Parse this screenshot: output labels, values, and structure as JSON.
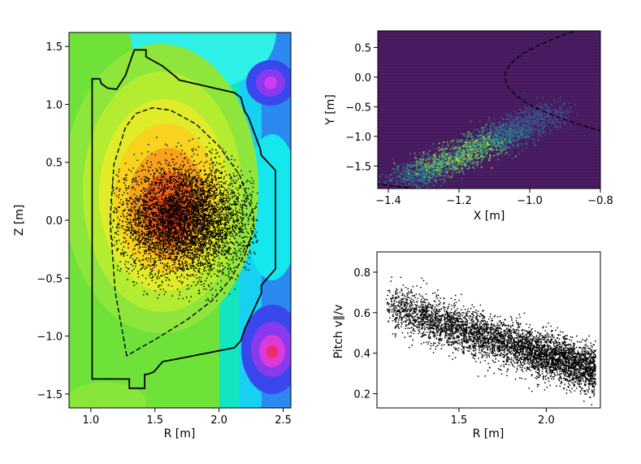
{
  "chart_data": [
    {
      "id": "poloidal",
      "type": "scatter",
      "title": "",
      "xlabel": "R [m]",
      "ylabel": "Z [m]",
      "xlim": [
        0.83,
        2.56
      ],
      "ylim": [
        -1.62,
        1.62
      ],
      "xticks": [
        1.0,
        1.5,
        2.0,
        2.5
      ],
      "xtick_labels": [
        "1.0",
        "1.5",
        "2.0",
        "2.5"
      ],
      "yticks": [
        -1.5,
        -1.0,
        -0.5,
        0.0,
        0.5,
        1.0,
        1.5
      ],
      "ytick_labels": [
        "−1.5",
        "−1.0",
        "−0.5",
        "0.0",
        "0.5",
        "1.0",
        "1.5"
      ],
      "background": "filled contour map of poloidal flux (green/yellow/red core, cyan/blue/magenta coils)",
      "wall": [
        [
          1.04,
          1.22
        ],
        [
          1.07,
          1.22
        ],
        [
          1.08,
          1.18
        ],
        [
          1.13,
          1.14
        ],
        [
          1.2,
          1.13
        ],
        [
          1.27,
          1.25
        ],
        [
          1.32,
          1.41
        ],
        [
          1.34,
          1.47
        ],
        [
          1.43,
          1.47
        ],
        [
          1.43,
          1.41
        ],
        [
          1.56,
          1.33
        ],
        [
          1.66,
          1.24
        ],
        [
          1.69,
          1.21
        ],
        [
          2.12,
          1.1
        ],
        [
          2.17,
          1.06
        ],
        [
          2.2,
          0.94
        ],
        [
          2.23,
          0.89
        ],
        [
          2.32,
          0.62
        ],
        [
          2.33,
          0.56
        ],
        [
          2.44,
          0.43
        ],
        [
          2.44,
          -0.42
        ],
        [
          2.33,
          -0.56
        ],
        [
          2.33,
          -0.63
        ],
        [
          2.2,
          -0.94
        ],
        [
          2.17,
          -1.04
        ],
        [
          2.12,
          -1.1
        ],
        [
          1.66,
          -1.2
        ],
        [
          1.56,
          -1.22
        ],
        [
          1.49,
          -1.31
        ],
        [
          1.44,
          -1.33
        ],
        [
          1.42,
          -1.33
        ],
        [
          1.42,
          -1.45
        ],
        [
          1.3,
          -1.45
        ],
        [
          1.3,
          -1.37
        ],
        [
          1.01,
          -1.37
        ],
        [
          1.01,
          1.22
        ],
        [
          1.04,
          1.22
        ]
      ],
      "separatrix": [
        [
          1.28,
          -1.17
        ],
        [
          1.19,
          -0.62
        ],
        [
          1.15,
          0.0
        ],
        [
          1.18,
          0.48
        ],
        [
          1.27,
          0.8
        ],
        [
          1.35,
          0.92
        ],
        [
          1.48,
          0.97
        ],
        [
          1.62,
          0.95
        ],
        [
          1.82,
          0.83
        ],
        [
          2.0,
          0.64
        ],
        [
          2.16,
          0.39
        ],
        [
          2.27,
          0.05
        ],
        [
          2.27,
          -0.08
        ],
        [
          2.2,
          -0.3
        ],
        [
          2.08,
          -0.52
        ],
        [
          1.95,
          -0.69
        ],
        [
          1.75,
          -0.86
        ],
        [
          1.5,
          -1.03
        ],
        [
          1.28,
          -1.17
        ]
      ],
      "markers": "particle markers (black dots) filling the plasma core, R 1.15-2.30 m, Z -0.7-0.7 m, densest near R=1.75 m, Z=0"
    },
    {
      "id": "xy-histogram",
      "type": "heatmap",
      "title": "",
      "xlabel": "X [m]",
      "ylabel": "Y [m]",
      "xlim": [
        -1.43,
        -0.8
      ],
      "ylim": [
        -1.88,
        0.78
      ],
      "xticks": [
        -1.4,
        -1.2,
        -1.0,
        -0.8
      ],
      "xtick_labels": [
        "−1.4",
        "−1.2",
        "−1.0",
        "−0.8"
      ],
      "yticks": [
        -1.5,
        -1.0,
        -0.5,
        0.0,
        0.5
      ],
      "ytick_labels": [
        "−1.5",
        "−1.0",
        "−0.5",
        "0.0",
        "0.5"
      ],
      "colormap": "viridis",
      "boundary_note": "dashed circles: separatrix outer and inner radius in the midplane",
      "density": "diagonal band of particle counts from about (-1.35, -1.7) to (-0.95, -0.55)"
    },
    {
      "id": "pitch",
      "type": "scatter",
      "title": "",
      "xlabel": "R [m]",
      "ylabel": "Pitch v∥/v",
      "xlim": [
        1.03,
        2.31
      ],
      "ylim": [
        0.13,
        0.9
      ],
      "xticks": [
        1.5,
        2.0
      ],
      "xtick_labels": [
        "1.5",
        "2.0"
      ],
      "yticks": [
        0.2,
        0.4,
        0.6,
        0.8
      ],
      "ytick_labels": [
        "0.2",
        "0.4",
        "0.6",
        "0.8"
      ],
      "trend": [
        [
          1.1,
          0.64
        ],
        [
          1.5,
          0.52
        ],
        [
          1.9,
          0.42
        ],
        [
          2.25,
          0.32
        ]
      ],
      "spread": "about ±0.06 around the trend, R 1.08-2.28 m"
    }
  ]
}
